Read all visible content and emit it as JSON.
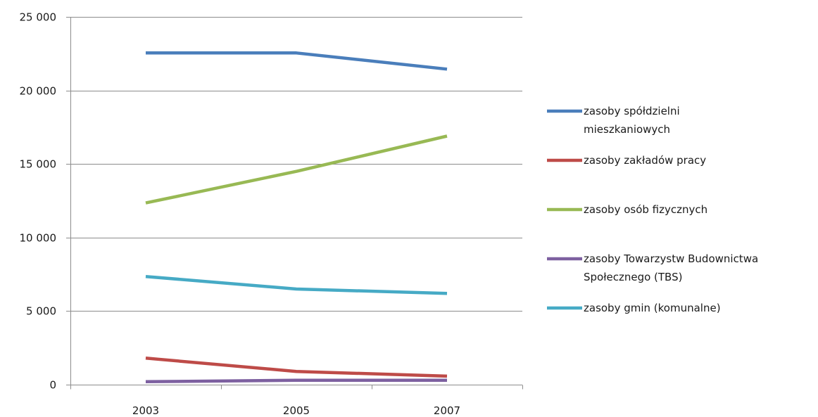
{
  "chart_data": {
    "type": "line",
    "title": "",
    "xlabel": "",
    "ylabel": "",
    "categories": [
      "2003",
      "2005",
      "2007"
    ],
    "ylim": [
      0,
      25000
    ],
    "y_ticks": [
      0,
      5000,
      10000,
      15000,
      20000,
      25000
    ],
    "y_tick_labels": [
      "0",
      "5 000",
      "10 000",
      "15 000",
      "20 000",
      "25 000"
    ],
    "grid": "horizontal",
    "legend_position": "right",
    "series": [
      {
        "name": "zasoby spółdzielni mieszkaniowych",
        "legend_lines": [
          "zasoby spółdzielni",
          "mieszkaniowych"
        ],
        "color": "#4a7ebb",
        "values": [
          22550,
          22550,
          21450
        ]
      },
      {
        "name": "zasoby zakładów pracy",
        "legend_lines": [
          "zasoby zakładów  pracy"
        ],
        "color": "#be4b48",
        "values": [
          1800,
          900,
          580
        ]
      },
      {
        "name": "zasoby osób fizycznych",
        "legend_lines": [
          "zasoby osób fizycznych"
        ],
        "color": "#98b954",
        "values": [
          12350,
          14500,
          16900
        ]
      },
      {
        "name": "zasoby Towarzystw Budownictwa Społecznego (TBS)",
        "legend_lines": [
          "zasoby Towarzystw  Budownictwa",
          "Społecznego (TBS)"
        ],
        "color": "#7d60a0",
        "values": [
          200,
          300,
          300
        ]
      },
      {
        "name": "zasoby gmin (komunalne)",
        "legend_lines": [
          "zasoby gmin  (komunalne)"
        ],
        "color": "#46aac5",
        "values": [
          7350,
          6500,
          6200
        ]
      }
    ]
  }
}
